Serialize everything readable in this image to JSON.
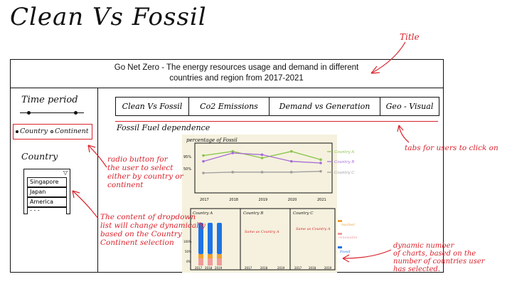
{
  "sketch_title": "Clean Vs Fossil",
  "app": {
    "title_line1": "Go Net Zero - The energy resources usage and demand in different",
    "title_line2": "countries and region from 2017-2021"
  },
  "sidebar": {
    "time_period_label": "Time period",
    "radio_country": "Country",
    "radio_continent": "Continent",
    "country_label": "Country",
    "dropdown_arrow": "▽",
    "dropdown_items": [
      "Singapore",
      "Japan",
      "America",
      "- - -"
    ]
  },
  "tabs": [
    "Clean Vs Fossil",
    "Co2 Emissions",
    "Demand vs Generation",
    "Geo - Visual"
  ],
  "section_title": "Fossil Fuel dependence",
  "line_chart": {
    "ylabel": "percentage of Fossil",
    "yticks": [
      "95%",
      "50%"
    ],
    "xticks": [
      "2017",
      "2018",
      "2019",
      "2020",
      "2021"
    ],
    "legend": [
      "Country A",
      "Country B",
      "Country C"
    ],
    "colors": [
      "#8bc34a",
      "#a66ad8",
      "#9e9e9e"
    ]
  },
  "chart_data": {
    "type": "line",
    "x": [
      "2017",
      "2018",
      "2019",
      "2020",
      "2021"
    ],
    "series": [
      {
        "name": "Country A",
        "values": [
          85,
          90,
          82,
          90,
          80
        ]
      },
      {
        "name": "Country B",
        "values": [
          78,
          88,
          86,
          78,
          76
        ]
      },
      {
        "name": "Country C",
        "values": [
          64,
          65,
          65,
          65,
          66
        ]
      }
    ]
  },
  "small_charts": {
    "panels": [
      {
        "title": "Country A",
        "note": ""
      },
      {
        "title": "Country B",
        "note": "Same as Country A"
      },
      {
        "title": "Country C",
        "note": "Same as Country A"
      }
    ],
    "xticks": [
      "2017",
      "2018",
      "2019"
    ],
    "yticks": [
      "100%",
      "50%",
      "0%"
    ],
    "legend": [
      "nuclear",
      "renewable",
      "Fossil"
    ],
    "legend_colors": [
      "#f0a030",
      "#f09a9a",
      "#1e73e6"
    ]
  },
  "annotations": {
    "title": "Title",
    "radio": "radio button for\nthe user to select\neither by country or\ncontinent",
    "dropdown": "The content of dropdown\nlist will change dynamically\nbased on the Country\nContinent selection",
    "tabs": "tabs for users to click on",
    "dynamic": "dynamic number\nof charts, based on the\nnumber of countries user\nhas selected."
  }
}
